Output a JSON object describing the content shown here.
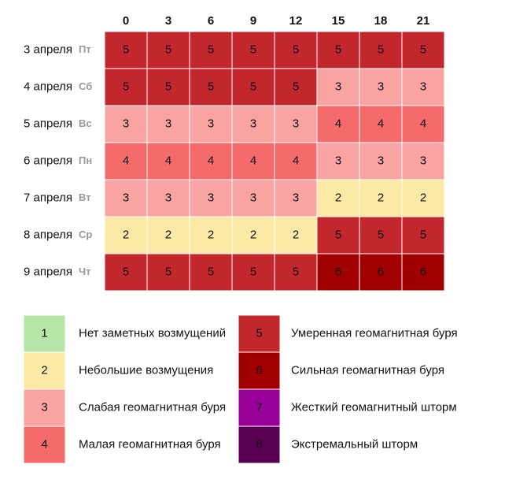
{
  "chart_data": {
    "type": "heatmap",
    "x": [
      0,
      3,
      6,
      9,
      12,
      15,
      18,
      21
    ],
    "rows": [
      {
        "date": "3 апреля",
        "weekday": "Пт",
        "values": [
          5,
          5,
          5,
          5,
          5,
          5,
          5,
          5
        ]
      },
      {
        "date": "4 апреля",
        "weekday": "Сб",
        "values": [
          5,
          5,
          5,
          5,
          5,
          3,
          3,
          3
        ]
      },
      {
        "date": "5 апреля",
        "weekday": "Вс",
        "values": [
          3,
          3,
          3,
          3,
          3,
          4,
          4,
          4
        ]
      },
      {
        "date": "6 апреля",
        "weekday": "Пн",
        "values": [
          4,
          4,
          4,
          4,
          4,
          3,
          3,
          3
        ]
      },
      {
        "date": "7 апреля",
        "weekday": "Вт",
        "values": [
          3,
          3,
          3,
          3,
          3,
          2,
          2,
          2
        ]
      },
      {
        "date": "8 апреля",
        "weekday": "Ср",
        "values": [
          2,
          2,
          2,
          2,
          2,
          5,
          5,
          5
        ]
      },
      {
        "date": "9 апреля",
        "weekday": "Чт",
        "values": [
          5,
          5,
          5,
          5,
          5,
          6,
          6,
          6
        ]
      }
    ],
    "levels": [
      {
        "value": 1,
        "label": "Нет заметных возмущений",
        "color": "#b5e6a8"
      },
      {
        "value": 2,
        "label": "Небольшие возмущения",
        "color": "#fbe9a5"
      },
      {
        "value": 3,
        "label": "Слабая геомагнитная буря",
        "color": "#f9a3a3"
      },
      {
        "value": 4,
        "label": "Малая геомагнитная буря",
        "color": "#f56a6a"
      },
      {
        "value": 5,
        "label": "Умеренная геомагнитная буря",
        "color": "#c1272d"
      },
      {
        "value": 6,
        "label": "Сильная геомагнитная буря",
        "color": "#a10000"
      },
      {
        "value": 7,
        "label": "Жесткий геомагнитный шторм",
        "color": "#99009a"
      },
      {
        "value": 8,
        "label": "Экстремальный шторм",
        "color": "#5a0052"
      }
    ]
  }
}
